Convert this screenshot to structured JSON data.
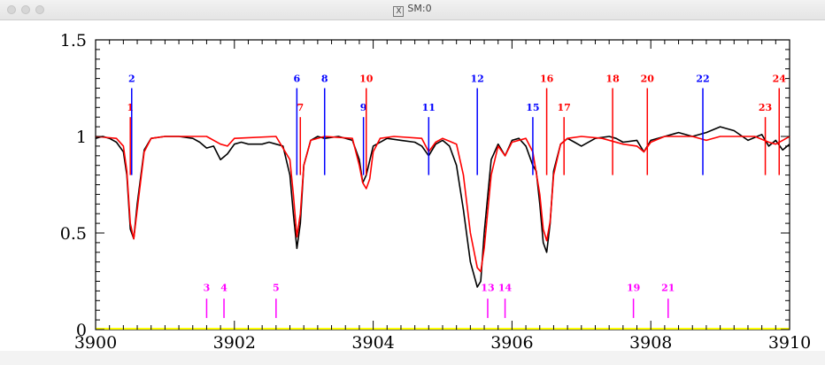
{
  "window": {
    "title": "SM:0",
    "x_icon": "X"
  },
  "chart_data": {
    "type": "line",
    "title": "",
    "xlabel": "",
    "ylabel": "",
    "xlim": [
      3900,
      3910
    ],
    "ylim": [
      0,
      1.5
    ],
    "xticks": [
      3900,
      3902,
      3904,
      3906,
      3908,
      3910
    ],
    "yticks": [
      0,
      0.5,
      1,
      1.5
    ],
    "ytick_labels": [
      "0",
      "0.5",
      "1",
      "1.5"
    ],
    "grid": false,
    "series": [
      {
        "color": "#000000",
        "x": [
          3900,
          3900.1,
          3900.2,
          3900.3,
          3900.4,
          3900.45,
          3900.5,
          3900.55,
          3900.6,
          3900.7,
          3900.8,
          3901,
          3901.2,
          3901.4,
          3901.5,
          3901.6,
          3901.7,
          3901.8,
          3901.9,
          3902,
          3902.1,
          3902.2,
          3902.4,
          3902.5,
          3902.6,
          3902.7,
          3902.8,
          3902.85,
          3902.9,
          3902.95,
          3903,
          3903.1,
          3903.2,
          3903.3,
          3903.5,
          3903.7,
          3903.8,
          3903.85,
          3903.9,
          3904,
          3904.2,
          3904.4,
          3904.6,
          3904.7,
          3904.8,
          3904.9,
          3905,
          3905.1,
          3905.2,
          3905.3,
          3905.4,
          3905.5,
          3905.55,
          3905.6,
          3905.7,
          3905.8,
          3905.9,
          3906,
          3906.1,
          3906.2,
          3906.3,
          3906.35,
          3906.4,
          3906.45,
          3906.5,
          3906.55,
          3906.6,
          3906.7,
          3906.8,
          3906.9,
          3907,
          3907.2,
          3907.4,
          3907.5,
          3907.6,
          3907.8,
          3907.9,
          3908,
          3908.2,
          3908.4,
          3908.6,
          3908.8,
          3909,
          3909.2,
          3909.4,
          3909.6,
          3909.7,
          3909.8,
          3909.9,
          3910
        ],
        "y": [
          0.99,
          1.0,
          0.99,
          0.97,
          0.92,
          0.8,
          0.52,
          0.47,
          0.65,
          0.93,
          0.99,
          1.0,
          1.0,
          0.99,
          0.97,
          0.94,
          0.95,
          0.88,
          0.91,
          0.96,
          0.97,
          0.96,
          0.96,
          0.97,
          0.96,
          0.95,
          0.8,
          0.6,
          0.42,
          0.55,
          0.85,
          0.98,
          1.0,
          0.99,
          1.0,
          0.98,
          0.88,
          0.76,
          0.8,
          0.95,
          0.99,
          0.98,
          0.97,
          0.95,
          0.9,
          0.96,
          0.98,
          0.95,
          0.85,
          0.62,
          0.35,
          0.22,
          0.25,
          0.5,
          0.88,
          0.96,
          0.9,
          0.98,
          0.99,
          0.95,
          0.85,
          0.82,
          0.65,
          0.45,
          0.4,
          0.55,
          0.82,
          0.96,
          0.99,
          0.97,
          0.95,
          0.99,
          1.0,
          0.99,
          0.97,
          0.98,
          0.92,
          0.98,
          1.0,
          1.02,
          1.0,
          1.02,
          1.05,
          1.03,
          0.98,
          1.01,
          0.95,
          0.98,
          0.93,
          0.96
        ]
      },
      {
        "color": "#ff0000",
        "x": [
          3900,
          3900.3,
          3900.4,
          3900.45,
          3900.5,
          3900.55,
          3900.6,
          3900.7,
          3900.8,
          3901,
          3901.6,
          3901.8,
          3901.9,
          3902,
          3902.6,
          3902.8,
          3902.85,
          3902.9,
          3902.95,
          3903,
          3903.1,
          3903.3,
          3903.7,
          3903.8,
          3903.85,
          3903.9,
          3903.95,
          3904,
          3904.1,
          3904.3,
          3904.7,
          3904.8,
          3904.9,
          3905,
          3905.2,
          3905.3,
          3905.4,
          3905.5,
          3905.55,
          3905.6,
          3905.7,
          3905.8,
          3905.9,
          3906,
          3906.2,
          3906.3,
          3906.4,
          3906.45,
          3906.5,
          3906.55,
          3906.6,
          3906.7,
          3906.8,
          3907,
          3907.3,
          3907.6,
          3907.8,
          3907.9,
          3908,
          3908.2,
          3908.6,
          3908.8,
          3909,
          3909.5,
          3909.7,
          3909.8,
          3909.9,
          3910
        ],
        "y": [
          1.0,
          0.99,
          0.95,
          0.82,
          0.55,
          0.47,
          0.62,
          0.92,
          0.99,
          1.0,
          1.0,
          0.96,
          0.95,
          0.99,
          1.0,
          0.88,
          0.7,
          0.48,
          0.6,
          0.85,
          0.98,
          1.0,
          0.99,
          0.85,
          0.76,
          0.73,
          0.78,
          0.92,
          0.99,
          1.0,
          0.99,
          0.92,
          0.97,
          0.99,
          0.96,
          0.8,
          0.5,
          0.32,
          0.3,
          0.42,
          0.8,
          0.95,
          0.9,
          0.97,
          0.99,
          0.92,
          0.7,
          0.52,
          0.46,
          0.56,
          0.8,
          0.96,
          0.99,
          1.0,
          0.99,
          0.96,
          0.95,
          0.92,
          0.97,
          1.0,
          1.0,
          0.98,
          1.0,
          1.0,
          0.97,
          0.96,
          0.98,
          1.0
        ]
      }
    ],
    "line_markers_upper": [
      {
        "label": "1",
        "x": 3900.5,
        "color": "#ff0000",
        "y_top": 1.1,
        "y_bottom": 0.8
      },
      {
        "label": "2",
        "x": 3900.52,
        "color": "#0000ff",
        "y_top": 1.25,
        "y_bottom": 0.8
      },
      {
        "label": "6",
        "x": 3902.9,
        "color": "#0000ff",
        "y_top": 1.25,
        "y_bottom": 0.8
      },
      {
        "label": "7",
        "x": 3902.95,
        "color": "#ff0000",
        "y_top": 1.1,
        "y_bottom": 0.8
      },
      {
        "label": "8",
        "x": 3903.3,
        "color": "#0000ff",
        "y_top": 1.25,
        "y_bottom": 0.8
      },
      {
        "label": "9",
        "x": 3903.86,
        "color": "#0000ff",
        "y_top": 1.1,
        "y_bottom": 0.8
      },
      {
        "label": "10",
        "x": 3903.9,
        "color": "#ff0000",
        "y_top": 1.25,
        "y_bottom": 0.8
      },
      {
        "label": "11",
        "x": 3904.8,
        "color": "#0000ff",
        "y_top": 1.1,
        "y_bottom": 0.8
      },
      {
        "label": "12",
        "x": 3905.5,
        "color": "#0000ff",
        "y_top": 1.25,
        "y_bottom": 0.8
      },
      {
        "label": "15",
        "x": 3906.3,
        "color": "#0000ff",
        "y_top": 1.1,
        "y_bottom": 0.8
      },
      {
        "label": "16",
        "x": 3906.5,
        "color": "#ff0000",
        "y_top": 1.25,
        "y_bottom": 0.8
      },
      {
        "label": "17",
        "x": 3906.75,
        "color": "#ff0000",
        "y_top": 1.1,
        "y_bottom": 0.8
      },
      {
        "label": "18",
        "x": 3907.45,
        "color": "#ff0000",
        "y_top": 1.25,
        "y_bottom": 0.8
      },
      {
        "label": "20",
        "x": 3907.95,
        "color": "#ff0000",
        "y_top": 1.25,
        "y_bottom": 0.8
      },
      {
        "label": "22",
        "x": 3908.75,
        "color": "#0000ff",
        "y_top": 1.25,
        "y_bottom": 0.8
      },
      {
        "label": "23",
        "x": 3909.65,
        "color": "#ff0000",
        "y_top": 1.1,
        "y_bottom": 0.8
      },
      {
        "label": "24",
        "x": 3909.85,
        "color": "#ff0000",
        "y_top": 1.25,
        "y_bottom": 0.8
      }
    ],
    "line_markers_lower": [
      {
        "label": "3",
        "x": 3901.6,
        "color": "#ff00ff"
      },
      {
        "label": "4",
        "x": 3901.85,
        "color": "#ff00ff"
      },
      {
        "label": "5",
        "x": 3902.6,
        "color": "#ff00ff"
      },
      {
        "label": "13",
        "x": 3905.65,
        "color": "#ff00ff"
      },
      {
        "label": "14",
        "x": 3905.9,
        "color": "#ff00ff"
      },
      {
        "label": "19",
        "x": 3907.75,
        "color": "#ff00ff"
      },
      {
        "label": "21",
        "x": 3908.25,
        "color": "#ff00ff"
      }
    ],
    "baseline": {
      "y": 0,
      "color": "#ffff00"
    }
  }
}
